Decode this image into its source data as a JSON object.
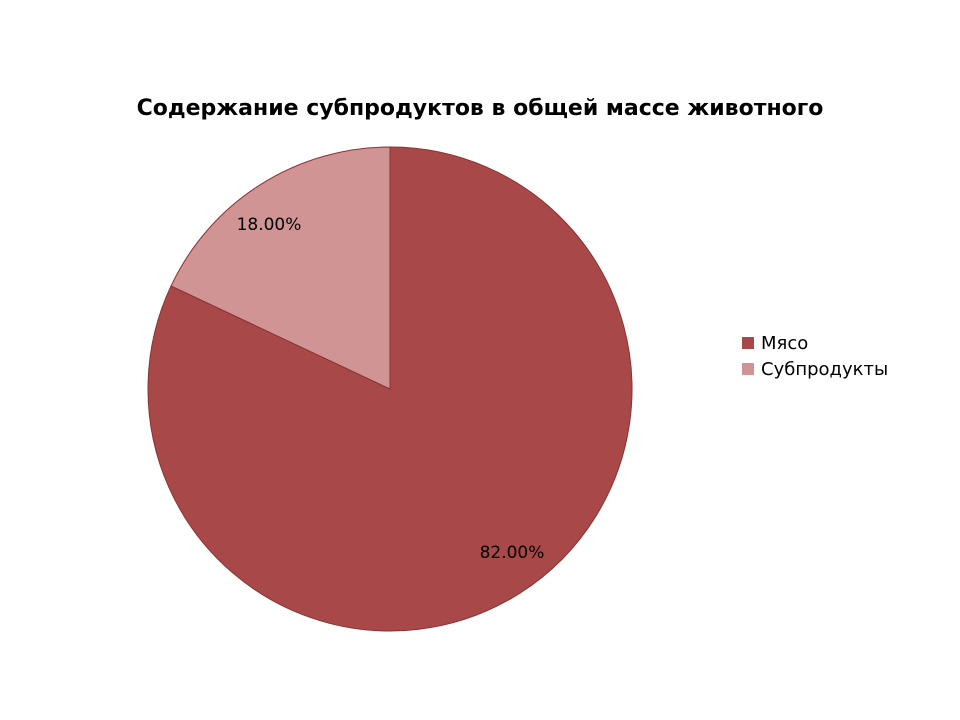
{
  "chart_data": {
    "type": "pie",
    "title": "Содержание субпродуктов в общей массе животного",
    "categories": [
      "Мясо",
      "Субпродукты"
    ],
    "values": [
      82.0,
      18.0
    ],
    "data_labels": [
      "82.00%",
      "18.00%"
    ],
    "colors": [
      "#a84848",
      "#d09494"
    ],
    "legend": "right",
    "start_angle": "top, clockwise"
  }
}
